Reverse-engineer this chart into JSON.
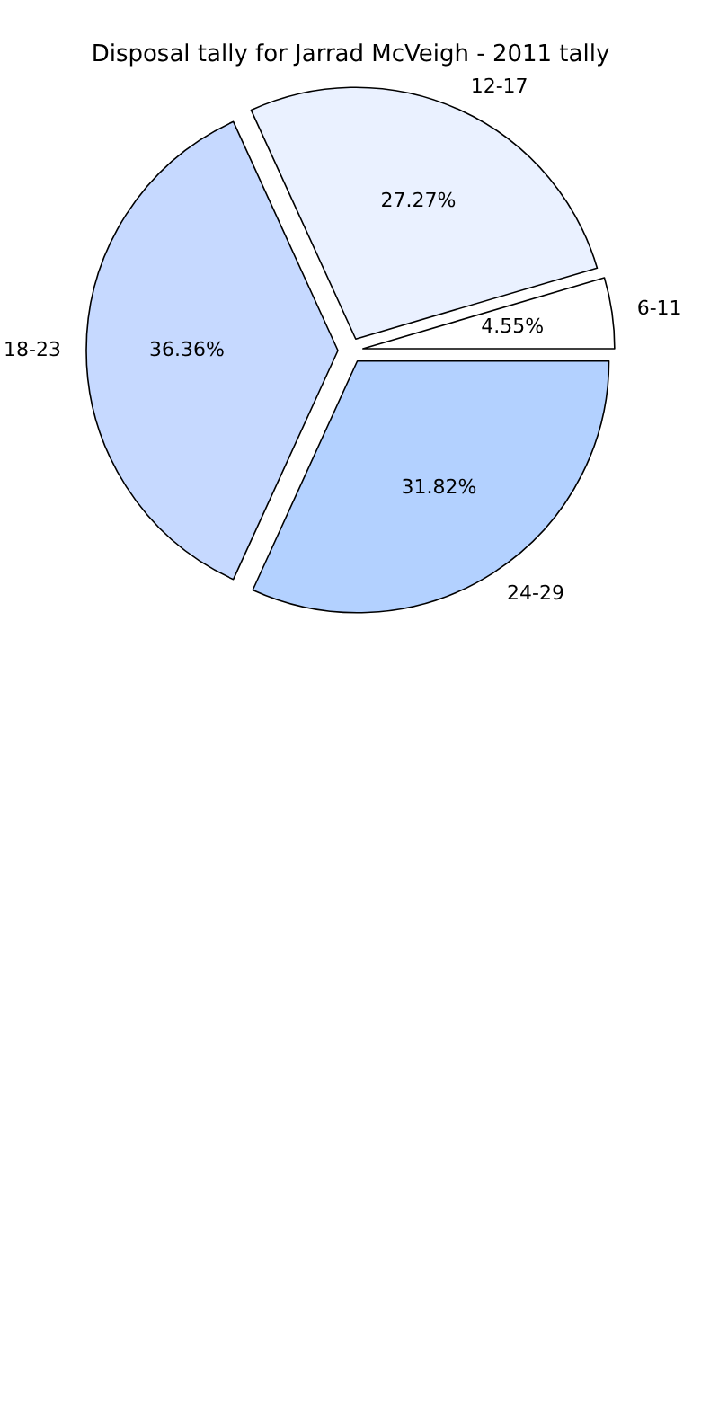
{
  "chart_data": {
    "type": "pie",
    "title": "Disposal tally for Jarrad McVeigh - 2011 tally",
    "categories": [
      "6-11",
      "12-17",
      "18-23",
      "24-29"
    ],
    "values": [
      4.55,
      27.27,
      36.36,
      31.82
    ],
    "value_labels": [
      "4.55%",
      "27.27%",
      "36.36%",
      "31.82%"
    ],
    "colors": [
      "#ffffff",
      "#eaf1ff",
      "#c6d9ff",
      "#b3d1ff"
    ]
  }
}
